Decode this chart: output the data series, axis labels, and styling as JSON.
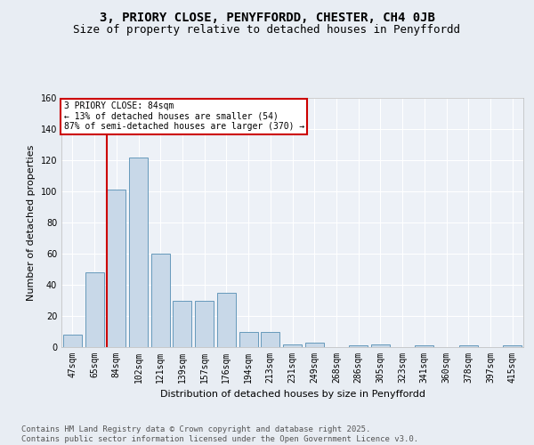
{
  "title_line1": "3, PRIORY CLOSE, PENYFFORDD, CHESTER, CH4 0JB",
  "title_line2": "Size of property relative to detached houses in Penyffordd",
  "xlabel": "Distribution of detached houses by size in Penyffordd",
  "ylabel": "Number of detached properties",
  "categories": [
    "47sqm",
    "65sqm",
    "84sqm",
    "102sqm",
    "121sqm",
    "139sqm",
    "157sqm",
    "176sqm",
    "194sqm",
    "213sqm",
    "231sqm",
    "249sqm",
    "268sqm",
    "286sqm",
    "305sqm",
    "323sqm",
    "341sqm",
    "360sqm",
    "378sqm",
    "397sqm",
    "415sqm"
  ],
  "values": [
    8,
    48,
    101,
    122,
    60,
    30,
    30,
    35,
    10,
    10,
    2,
    3,
    0,
    1,
    2,
    0,
    1,
    0,
    1,
    0,
    1
  ],
  "bar_color": "#c8d8e8",
  "bar_edge_color": "#6699bb",
  "vline_color": "#cc0000",
  "annotation_text": "3 PRIORY CLOSE: 84sqm\n← 13% of detached houses are smaller (54)\n87% of semi-detached houses are larger (370) →",
  "annotation_box_color": "#cc0000",
  "ylim": [
    0,
    160
  ],
  "yticks": [
    0,
    20,
    40,
    60,
    80,
    100,
    120,
    140,
    160
  ],
  "bg_color": "#e8edf3",
  "plot_bg_color": "#edf1f7",
  "grid_color": "#ffffff",
  "footer_text": "Contains HM Land Registry data © Crown copyright and database right 2025.\nContains public sector information licensed under the Open Government Licence v3.0.",
  "title_fontsize": 10,
  "subtitle_fontsize": 9,
  "axis_label_fontsize": 8,
  "tick_fontsize": 7,
  "annot_fontsize": 7,
  "footer_fontsize": 6.5
}
